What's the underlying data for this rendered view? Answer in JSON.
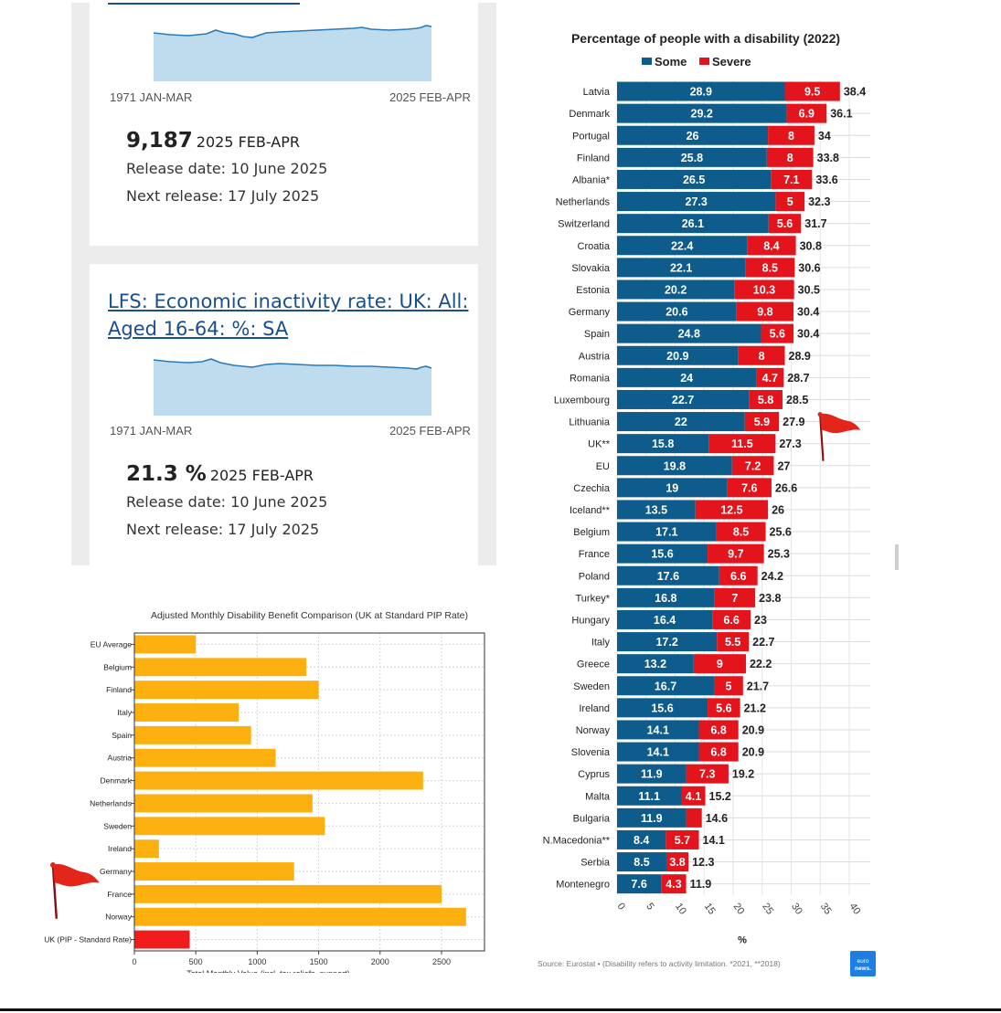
{
  "left_panel": {
    "card1": {
      "axis_start": "1971 JAN-MAR",
      "axis_end": "2025 FEB-APR",
      "value": "9,187",
      "period": "2025 FEB-APR",
      "release": "Release date: 10 June 2025",
      "next_release": "Next release: 17 July 2025"
    },
    "card2": {
      "title_line1": "LFS: Economic inactivity rate: UK: All:",
      "title_line2": "Aged 16-64: %: SA",
      "axis_start": "1971 JAN-MAR",
      "axis_end": "2025 FEB-APR",
      "value": "21.3 %",
      "period": "2025 FEB-APR",
      "release": "Release date: 10 June 2025",
      "next_release": "Next release: 17 July 2025"
    }
  },
  "colors": {
    "spark_fill": "#bfdcee",
    "spark_line": "#2a7ab8",
    "some": "#0d5c8c",
    "severe": "#e4141c",
    "benefit_bar": "#fbb00f",
    "benefit_uk": "#f21c1c",
    "flag": "#e3261a"
  },
  "chart_data": [
    {
      "type": "bar",
      "orientation": "horizontal",
      "title": "Adjusted Monthly Disability Benefit Comparison (UK at Standard PIP Rate)",
      "xlabel": "Total Monthly Value (incl. tax reliefs, support)",
      "ylabel": "",
      "xlim": [
        0,
        2850
      ],
      "xticks": [
        0,
        500,
        1000,
        1500,
        2000,
        2500
      ],
      "categories": [
        "EU Average",
        "Belgium",
        "Finland",
        "Italy",
        "Spain",
        "Austria",
        "Denmark",
        "Netherlands",
        "Sweden",
        "Ireland",
        "Germany",
        "France",
        "Norway",
        "UK (PIP - Standard Rate)"
      ],
      "values": [
        500,
        1400,
        1500,
        850,
        950,
        1150,
        2350,
        1450,
        1550,
        200,
        1300,
        2500,
        2700,
        450
      ],
      "highlight": "UK (PIP - Standard Rate)",
      "annotation": "red flag next to France"
    },
    {
      "type": "bar",
      "orientation": "horizontal",
      "stacked": true,
      "title": "Percentage of people with a disability (2022)",
      "xlabel": "%",
      "xlim": [
        0,
        40
      ],
      "xticks": [
        0,
        5,
        10,
        15,
        20,
        25,
        30,
        35,
        40
      ],
      "legend": [
        "Some",
        "Severe"
      ],
      "categories": [
        "Latvia",
        "Denmark",
        "Portugal",
        "Finland",
        "Albania*",
        "Netherlands",
        "Switzerland",
        "Croatia",
        "Slovakia",
        "Estonia",
        "Germany",
        "Spain",
        "Austria",
        "Romania",
        "Luxembourg",
        "Lithuania",
        "UK**",
        "EU",
        "Czechia",
        "Iceland**",
        "Belgium",
        "France",
        "Poland",
        "Turkey*",
        "Hungary",
        "Italy",
        "Greece",
        "Sweden",
        "Ireland",
        "Norway",
        "Slovenia",
        "Cyprus",
        "Malta",
        "Bulgaria",
        "N.Macedonia**",
        "Serbia",
        "Montenegro"
      ],
      "series": [
        {
          "name": "Some",
          "values": [
            "28.9",
            "29.2",
            "26",
            "25.8",
            "26.5",
            "27.3",
            "26.1",
            "22.4",
            "22.1",
            "20.2",
            "20.6",
            "24.8",
            "20.9",
            "24",
            "22.7",
            "22",
            "15.8",
            "19.8",
            "19",
            "13.5",
            "17.1",
            "15.6",
            "17.6",
            "16.8",
            "16.4",
            "17.2",
            "13.2",
            "16.7",
            "15.6",
            "14.1",
            "14.1",
            "11.9",
            "11.1",
            "11.9",
            "8.4",
            "8.5",
            "7.6"
          ]
        },
        {
          "name": "Severe",
          "values": [
            "9.5",
            "6.9",
            "8",
            "8",
            "7.1",
            "5",
            "5.6",
            "8.4",
            "8.5",
            "10.3",
            "9.8",
            "5.6",
            "8",
            "4.7",
            "5.8",
            "5.9",
            "11.5",
            "7.2",
            "7.6",
            "12.5",
            "8.5",
            "9.7",
            "6.6",
            "7",
            "6.6",
            "5.5",
            "9",
            "5",
            "5.6",
            "6.8",
            "6.8",
            "7.3",
            "4.1",
            "2.7",
            "5.7",
            "3.8",
            "4.3"
          ]
        }
      ],
      "totals": [
        "38.4",
        "36.1",
        "34",
        "33.8",
        "33.6",
        "32.3",
        "31.7",
        "30.8",
        "30.6",
        "30.5",
        "30.4",
        "30.4",
        "28.9",
        "28.7",
        "28.5",
        "27.9",
        "27.3",
        "27",
        "26.6",
        "26",
        "25.6",
        "25.3",
        "24.2",
        "23.8",
        "23",
        "22.7",
        "22.2",
        "21.7",
        "21.2",
        "20.9",
        "20.9",
        "19.2",
        "15.2",
        "14.6",
        "14.1",
        "12.3",
        "11.9"
      ],
      "hidden_severe_labels": [
        "Bulgaria"
      ],
      "source": "Source: Eurostat • (Disability refers to activity limitation. *2021, **2018)",
      "logo_text": "euro news.",
      "annotation": "red flag next to Lithuania / UK**"
    }
  ]
}
